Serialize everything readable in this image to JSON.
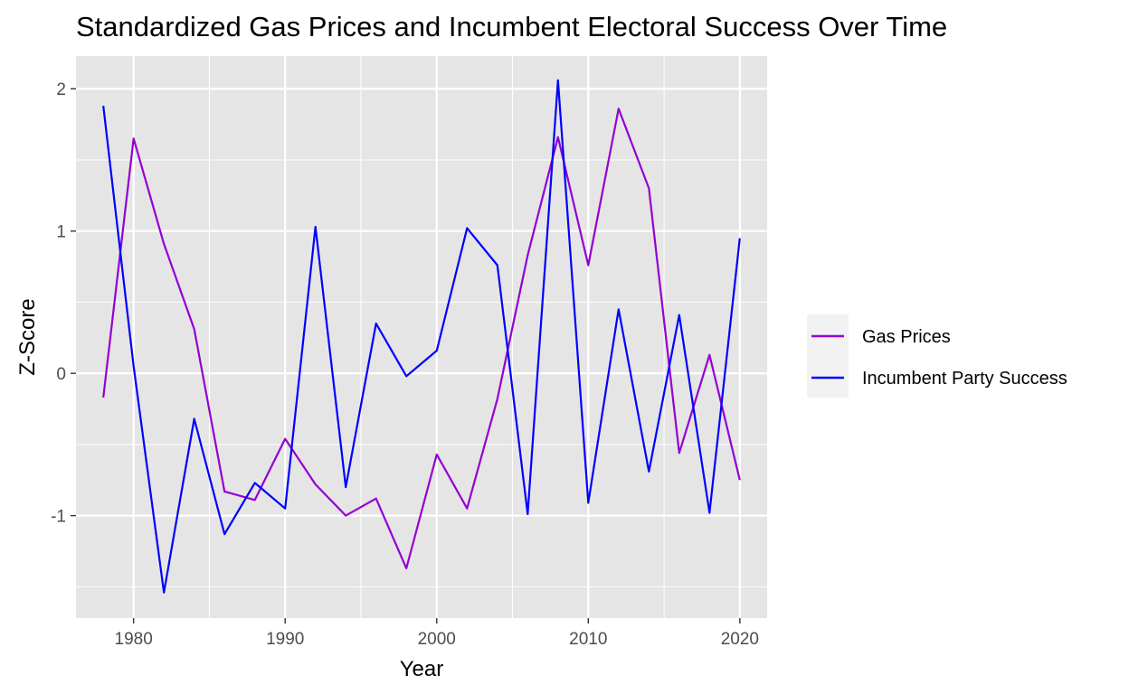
{
  "chart_data": {
    "type": "line",
    "title": "Standardized Gas Prices and Incumbent Electoral Success Over Time",
    "xlabel": "Year",
    "ylabel": "Z-Score",
    "xlim": [
      1976.2,
      2021.8
    ],
    "ylim": [
      -1.72,
      2.23
    ],
    "x_ticks": [
      1980,
      1990,
      2000,
      2010,
      2020
    ],
    "x_tick_labels": [
      "1980",
      "1990",
      "2000",
      "2010",
      "2020"
    ],
    "y_ticks": [
      -1,
      0,
      1,
      2
    ],
    "y_tick_labels": [
      "-1",
      "0",
      "1",
      "2"
    ],
    "grid": true,
    "legend_position": "right",
    "x": [
      1978,
      1980,
      1982,
      1984,
      1986,
      1988,
      1990,
      1992,
      1994,
      1996,
      1998,
      2000,
      2002,
      2004,
      2006,
      2008,
      2010,
      2012,
      2014,
      2016,
      2018,
      2020
    ],
    "series": [
      {
        "name": "Gas Prices",
        "color": "#9400D3",
        "values": [
          -0.17,
          1.65,
          0.91,
          0.31,
          -0.83,
          -0.89,
          -0.46,
          -0.78,
          -1.0,
          -0.88,
          -1.37,
          -0.57,
          -0.95,
          -0.18,
          0.83,
          1.66,
          0.76,
          1.86,
          1.3,
          -0.56,
          0.13,
          -0.75
        ]
      },
      {
        "name": "Incumbent Party Success",
        "color": "#0000FF",
        "values": [
          1.88,
          0.05,
          -1.54,
          -0.32,
          -1.13,
          -0.77,
          -0.95,
          1.03,
          -0.8,
          0.35,
          -0.02,
          0.16,
          1.02,
          0.76,
          -0.99,
          2.06,
          -0.91,
          0.45,
          -0.69,
          0.41,
          -0.98,
          0.95
        ]
      }
    ]
  }
}
